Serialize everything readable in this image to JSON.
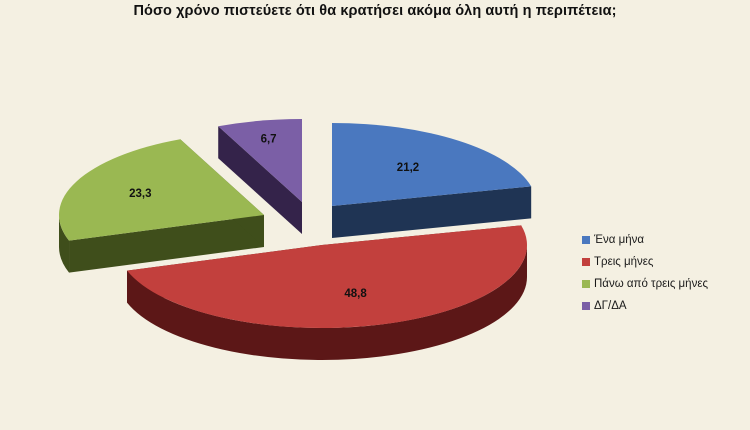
{
  "chart_data": {
    "type": "pie",
    "title": "Πόσο χρόνο πιστεύετε ότι θα κρατήσει ακόμα όλη αυτή η περιπέτεια;",
    "three_d": true,
    "exploded": true,
    "legend_position": "right",
    "slices": [
      {
        "label": "Ένα μήνα",
        "value": 21.2,
        "value_label": "21,2",
        "color": "#4a78bf",
        "side_color": "#1f3454"
      },
      {
        "label": "Τρεις μήνες",
        "value": 48.8,
        "value_label": "48,8",
        "color": "#c2403d",
        "side_color": "#5c1717"
      },
      {
        "label": "Πάνω από τρεις μήνες",
        "value": 23.3,
        "value_label": "23,3",
        "color": "#9ab852",
        "side_color": "#3f4e1b"
      },
      {
        "label": "ΔΓ/ΔΑ",
        "value": 6.7,
        "value_label": "6,7",
        "color": "#7b5fa6",
        "side_color": "#34234a"
      }
    ]
  }
}
